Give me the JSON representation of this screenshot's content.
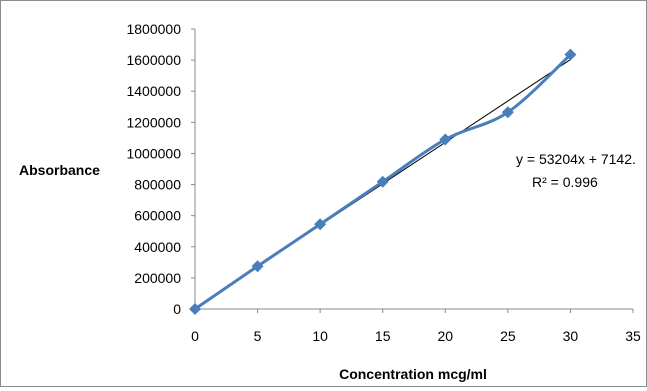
{
  "chart_data": {
    "type": "scatter",
    "title": "",
    "xlabel": "Concentration mcg/ml",
    "ylabel": "Absorbance",
    "xlim": [
      0,
      35
    ],
    "ylim": [
      0,
      1800000
    ],
    "x_ticks": [
      0,
      5,
      10,
      15,
      20,
      25,
      30,
      35
    ],
    "y_ticks": [
      0,
      200000,
      400000,
      600000,
      800000,
      1000000,
      1200000,
      1400000,
      1600000,
      1800000
    ],
    "grid": false,
    "legend": "none",
    "series": [
      {
        "values": [
          {
            "x": 0,
            "y": 0
          },
          {
            "x": 5,
            "y": 275000
          },
          {
            "x": 10,
            "y": 545000
          },
          {
            "x": 15,
            "y": 818000
          },
          {
            "x": 20,
            "y": 1090000
          },
          {
            "x": 25,
            "y": 1265000
          },
          {
            "x": 30,
            "y": 1635000
          }
        ],
        "color": "#4a7ebb",
        "marker": "diamond",
        "smooth": true
      }
    ],
    "trendline": {
      "type": "linear",
      "slope": 53204,
      "intercept": 7142,
      "x_range": [
        0,
        30
      ],
      "color": "#000000"
    },
    "annotations": {
      "equation": "y = 53204x + 7142.",
      "r_squared": "R² = 0.996"
    }
  }
}
